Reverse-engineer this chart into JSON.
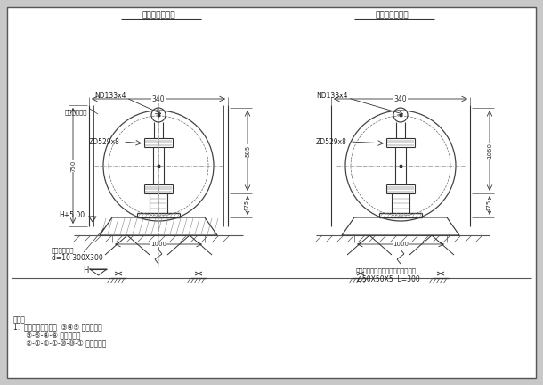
{
  "title_left": "固定支架大样二",
  "title_right": "导向支架大样二",
  "bg_color": "#d4d4d4",
  "border_color": "#555555",
  "line_color": "#444444",
  "dim_color": "#444444",
  "text_color": "#222222",
  "notes_line1": "备注：",
  "notes_line2": "1.  本支撑管形式用于  ③④⑤ 固定支架，",
  "notes_line3": "      ③-⑤-⑧-⑧ 导向支架，",
  "notes_line4": "      ②-①-①-①-⑩-⑩-① 滑动支架。",
  "left_nd": "ND133x4",
  "left_zd": "ZD529x8",
  "left_soil": "土建预留槽钢",
  "left_h": "H+5.00",
  "left_base": "土建基座截面",
  "left_base2": "d=10 300X300",
  "right_nd": "ND133x4",
  "right_zd": "ZD529x8",
  "right_note1": "导向支架详图二截（滑动支架参下）",
  "right_note2": "∠50X50X5  L=300",
  "dim_340": "340",
  "dim_585": "585",
  "dim_750": "750",
  "dim_475": "475",
  "dim_1060": "1060",
  "dim_1000": "1000",
  "H_label": "H"
}
